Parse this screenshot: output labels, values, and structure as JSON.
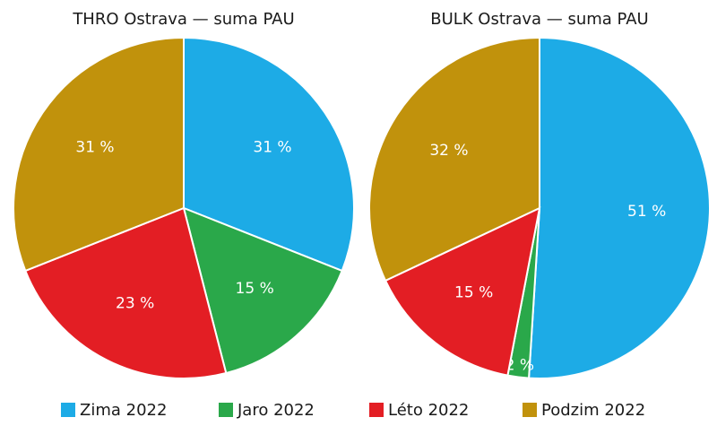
{
  "chart_data": [
    {
      "type": "pie",
      "title": "THRO Ostrava — suma PAU",
      "categories": [
        "Zima 2022",
        "Jaro 2022",
        "Léto 2022",
        "Podzim 2022"
      ],
      "values": [
        31,
        15,
        23,
        31
      ],
      "value_labels": [
        "31 %",
        "15 %",
        "23 %",
        "31 %"
      ],
      "colors": [
        "#1dabe6",
        "#2aa84a",
        "#e31e24",
        "#c1920c"
      ]
    },
    {
      "type": "pie",
      "title": "BULK Ostrava — suma PAU",
      "categories": [
        "Zima 2022",
        "Jaro 2022",
        "Léto 2022",
        "Podzim 2022"
      ],
      "values": [
        51,
        2,
        15,
        32
      ],
      "value_labels": [
        "51 %",
        "2 %",
        "15 %",
        "32 %"
      ],
      "colors": [
        "#1dabe6",
        "#2aa84a",
        "#e31e24",
        "#c1920c"
      ]
    }
  ]
}
